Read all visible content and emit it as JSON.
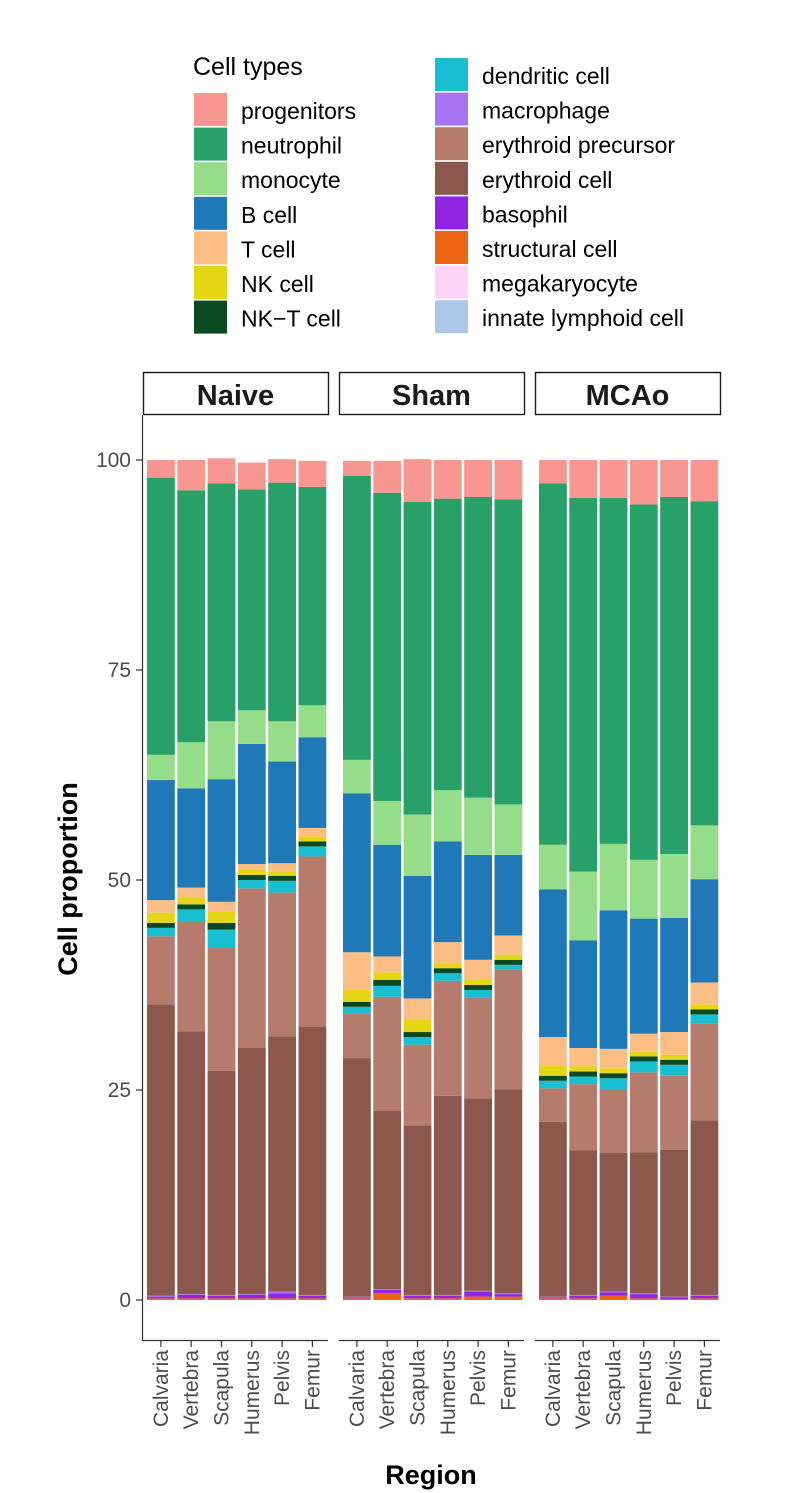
{
  "chart_data": {
    "type": "bar",
    "stacked": true,
    "ylabel": "Cell proportion",
    "xlabel": "Region",
    "ylim": [
      0,
      100
    ],
    "yticks": [
      "0",
      "25",
      "50",
      "75",
      "100"
    ],
    "legend": {
      "title": "Cell types",
      "position": "top",
      "entries": [
        {
          "name": "progenitors",
          "color": "#F8978F"
        },
        {
          "name": "neutrophil",
          "color": "#27A06A"
        },
        {
          "name": "monocyte",
          "color": "#95DD89"
        },
        {
          "name": "B cell",
          "color": "#1F78B8"
        },
        {
          "name": "T cell",
          "color": "#FDBE85"
        },
        {
          "name": "NK cell",
          "color": "#E5D614"
        },
        {
          "name": "NK−T cell",
          "color": "#0B4A21"
        },
        {
          "name": "dendritic cell",
          "color": "#17BFD0"
        },
        {
          "name": "macrophage",
          "color": "#A674F5"
        },
        {
          "name": "erythroid precursor",
          "color": "#B57C6E"
        },
        {
          "name": "erythroid cell",
          "color": "#8C584D"
        },
        {
          "name": "basophil",
          "color": "#9125E3"
        },
        {
          "name": "structural cell",
          "color": "#EB6514"
        },
        {
          "name": "megakaryocyte",
          "color": "#FCD4F9"
        },
        {
          "name": "innate lymphoid cell",
          "color": "#AEC7E8"
        }
      ]
    },
    "stack_order": [
      "structural cell",
      "basophil",
      "macrophage",
      "erythroid cell",
      "erythroid precursor",
      "dendritic cell",
      "NK−T cell",
      "NK cell",
      "T cell",
      "B cell",
      "monocyte",
      "neutrophil",
      "progenitors"
    ],
    "categories": [
      "Calvaria",
      "Vertebra",
      "Scapula",
      "Humerus",
      "Pelvis",
      "Femur"
    ],
    "panels": [
      {
        "name": "Naive",
        "bars": [
          [
            0.2,
            0.2,
            0.1,
            34.7,
            8.1,
            1.0,
            0.6,
            1.2,
            1.5,
            14.3,
            3.0,
            33.0,
            2.1
          ],
          [
            0.2,
            0.4,
            0.1,
            31.3,
            13.0,
            1.5,
            0.6,
            0.8,
            1.2,
            11.8,
            5.5,
            30.0,
            3.6
          ],
          [
            0.2,
            0.3,
            0.1,
            26.7,
            14.6,
            2.2,
            0.8,
            1.3,
            1.2,
            14.6,
            6.9,
            28.3,
            3.0
          ],
          [
            0.2,
            0.4,
            0.1,
            29.3,
            19.0,
            1.0,
            0.6,
            0.6,
            0.7,
            14.3,
            4.0,
            26.3,
            3.2
          ],
          [
            0.2,
            0.6,
            0.2,
            30.4,
            17.1,
            1.4,
            0.6,
            0.5,
            1.0,
            12.1,
            4.8,
            28.4,
            2.8
          ],
          [
            0.2,
            0.3,
            0.1,
            31.9,
            20.3,
            1.2,
            0.6,
            0.6,
            1.0,
            10.8,
            3.8,
            26.0,
            3.1
          ]
        ]
      },
      {
        "name": "Sham",
        "bars": [
          [
            0.2,
            0.1,
            0.1,
            28.4,
            5.3,
            0.8,
            0.6,
            1.4,
            4.5,
            18.9,
            4.0,
            33.8,
            1.8
          ],
          [
            0.8,
            0.4,
            0.1,
            21.2,
            13.6,
            1.3,
            0.7,
            0.9,
            1.9,
            13.3,
            5.2,
            36.7,
            3.8
          ],
          [
            0.2,
            0.3,
            0.1,
            20.2,
            9.6,
            0.9,
            0.6,
            1.5,
            2.5,
            14.6,
            7.3,
            37.2,
            5.1
          ],
          [
            0.2,
            0.3,
            0.1,
            23.7,
            13.7,
            0.9,
            0.6,
            0.6,
            2.5,
            12.0,
            6.1,
            34.7,
            4.6
          ],
          [
            0.4,
            0.6,
            0.1,
            22.9,
            12.0,
            0.9,
            0.6,
            0.7,
            2.3,
            12.5,
            6.8,
            35.8,
            4.4
          ],
          [
            0.4,
            0.3,
            0.1,
            24.3,
            14.2,
            0.6,
            0.6,
            0.6,
            2.3,
            9.6,
            6.0,
            36.3,
            4.7
          ]
        ]
      },
      {
        "name": "MCAo",
        "bars": [
          [
            0.2,
            0.1,
            0.1,
            20.8,
            4.0,
            0.9,
            0.6,
            1.2,
            3.4,
            17.6,
            5.3,
            43.0,
            2.8
          ],
          [
            0.2,
            0.3,
            0.1,
            17.2,
            7.9,
            0.9,
            0.6,
            0.6,
            2.2,
            12.8,
            8.2,
            44.5,
            4.5
          ],
          [
            0.5,
            0.4,
            0.1,
            16.5,
            7.5,
            1.4,
            0.6,
            0.6,
            2.3,
            16.5,
            7.9,
            41.2,
            4.5
          ],
          [
            0.2,
            0.5,
            0.1,
            16.8,
            9.5,
            1.3,
            0.6,
            0.6,
            2.1,
            13.7,
            7.0,
            42.3,
            5.3
          ],
          [
            0.1,
            0.2,
            0.1,
            17.5,
            8.8,
            1.3,
            0.6,
            0.6,
            2.7,
            13.6,
            7.6,
            42.5,
            4.4
          ],
          [
            0.2,
            0.3,
            0.1,
            20.8,
            11.5,
            1.1,
            0.6,
            0.6,
            2.6,
            12.3,
            6.4,
            38.6,
            4.9
          ]
        ]
      }
    ]
  }
}
